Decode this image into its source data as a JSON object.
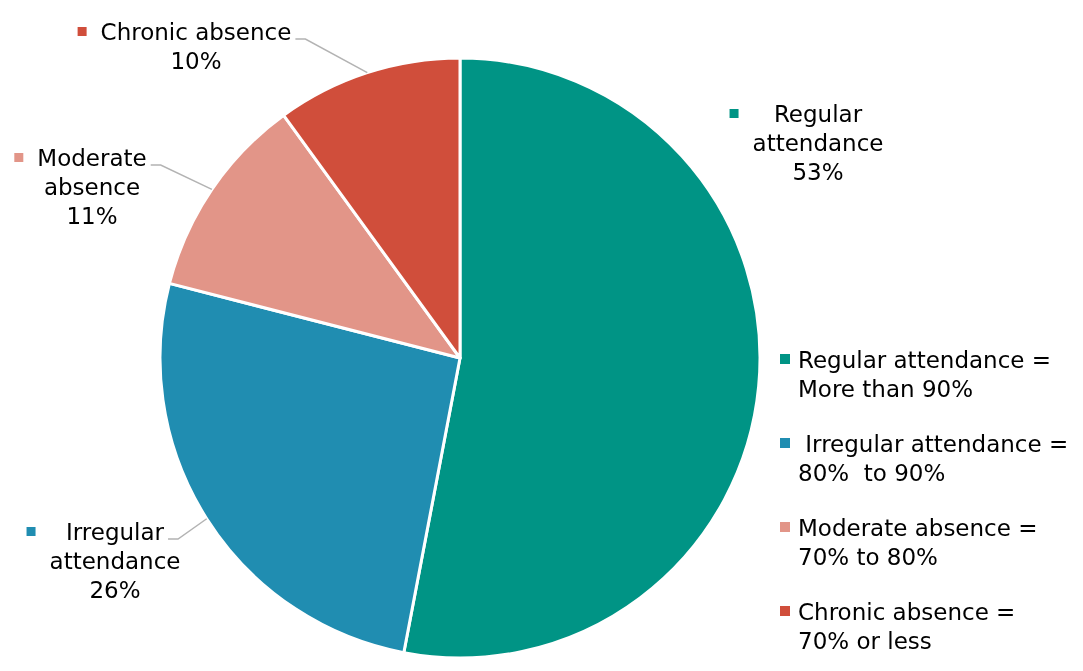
{
  "chart_data": {
    "type": "pie",
    "categories": [
      "Regular attendance",
      "Irregular attendance",
      "Moderate absence",
      "Chronic absence"
    ],
    "values": [
      53,
      26,
      11,
      10
    ],
    "colors": [
      "#009485",
      "#208db1",
      "#e29588",
      "#d04e3b"
    ],
    "value_labels": [
      "53%",
      "26%",
      "11%",
      "10%"
    ],
    "legend": "right",
    "annotations": [
      "Regular attendance = More than 90%",
      " Irregular attendance = 80%  to 90%",
      "Moderate absence = 70% to 80%",
      "Chronic absence = 70% or less"
    ]
  }
}
